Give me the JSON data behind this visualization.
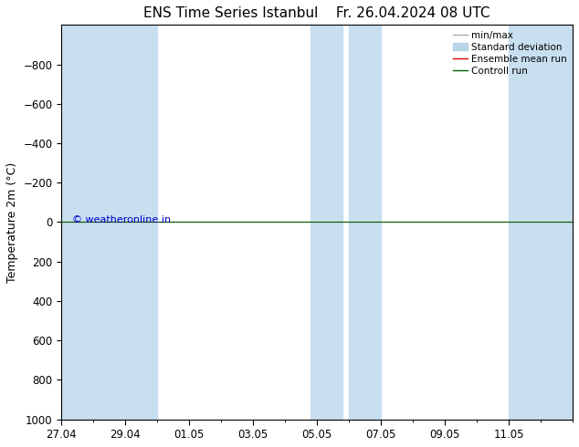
{
  "title": "ENS Time Series Istanbul",
  "title2": "Fr. 26.04.2024 08 UTC",
  "ylabel": "Temperature 2m (°C)",
  "ylim": [
    -1000,
    1000
  ],
  "yticks": [
    -800,
    -600,
    -400,
    -200,
    0,
    200,
    400,
    600,
    800,
    1000
  ],
  "xtick_labels": [
    "27.04",
    "29.04",
    "01.05",
    "03.05",
    "05.05",
    "07.05",
    "09.05",
    "11.05"
  ],
  "xtick_positions": [
    0,
    2,
    4,
    6,
    8,
    10,
    12,
    14
  ],
  "xlim": [
    0,
    16
  ],
  "background_color": "#ffffff",
  "plot_bg_color": "#ffffff",
  "shaded_bands": [
    [
      0.0,
      2.0
    ],
    [
      2.0,
      3.0
    ],
    [
      7.8,
      8.8
    ],
    [
      9.0,
      10.0
    ],
    [
      14.0,
      16.0
    ]
  ],
  "shaded_color": "#c8dff0",
  "hline_y": 0,
  "hline_color_ensemble": "#dd0000",
  "hline_color_control": "#006400",
  "legend_labels": [
    "min/max",
    "Standard deviation",
    "Ensemble mean run",
    "Controll run"
  ],
  "legend_line_color_minmax": "#aaaaaa",
  "legend_fill_stddev": "#b8d4e8",
  "watermark": "© weatheronline.in",
  "watermark_color": "#0000cc",
  "title_fontsize": 11,
  "axis_fontsize": 9,
  "tick_fontsize": 8.5,
  "legend_fontsize": 7.5
}
